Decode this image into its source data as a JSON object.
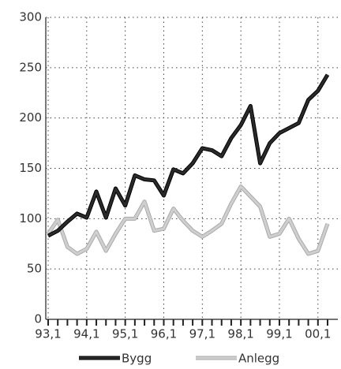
{
  "chart_data": {
    "type": "line",
    "categories": [
      "93,1",
      null,
      null,
      null,
      "94,1",
      null,
      null,
      null,
      "95,1",
      null,
      null,
      null,
      "96,1",
      null,
      null,
      null,
      "97,1",
      null,
      null,
      null,
      "98,1",
      null,
      null,
      null,
      "99,1",
      null,
      null,
      null,
      "00,1",
      null
    ],
    "series": [
      {
        "name": "Bygg",
        "color": "#2a2a2a",
        "values": [
          83,
          88,
          97,
          105,
          101,
          127,
          101,
          130,
          113,
          143,
          139,
          138,
          123,
          149,
          145,
          155,
          170,
          168,
          162,
          180,
          193,
          212,
          155,
          175,
          185,
          190,
          195,
          218,
          227,
          243
        ]
      },
      {
        "name": "Anlegg",
        "color": "#cfcfcf",
        "values": [
          85,
          99,
          72,
          65,
          70,
          87,
          68,
          85,
          100,
          100,
          117,
          88,
          90,
          110,
          98,
          88,
          82,
          88,
          95,
          115,
          132,
          122,
          112,
          82,
          85,
          100,
          80,
          65,
          68,
          95
        ]
      }
    ],
    "ylim": [
      0,
      300
    ],
    "yticks": [
      0,
      50,
      100,
      150,
      200,
      250,
      300
    ],
    "grid": true,
    "legend": "bottom"
  }
}
